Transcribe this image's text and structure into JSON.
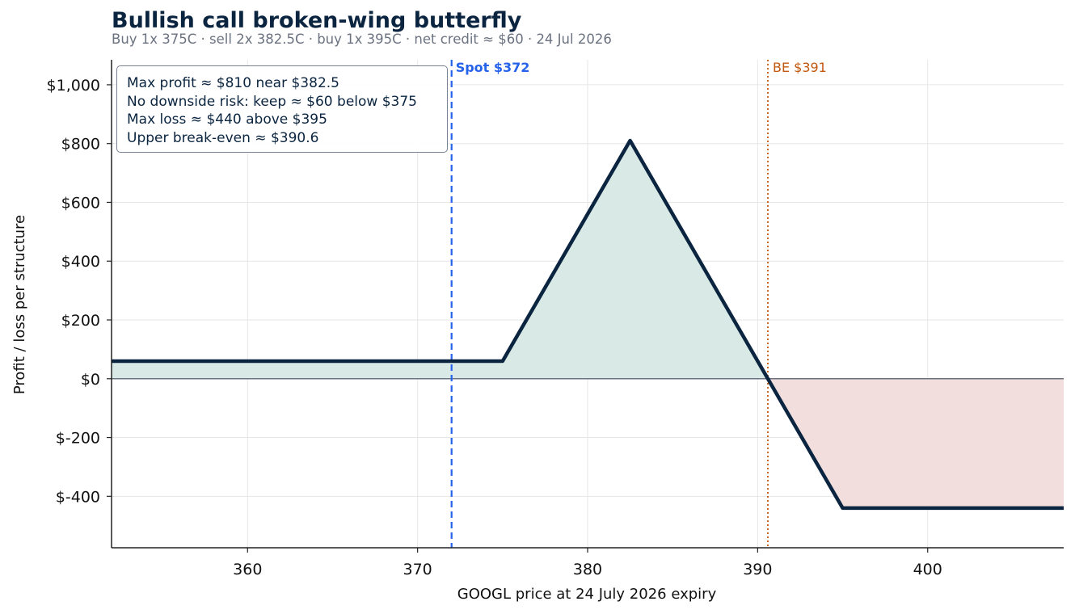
{
  "title": "Bullish call broken-wing butterfly",
  "subtitle": "Buy 1x 375C · sell 2x 382.5C · buy 1x 395C · net credit ≈ $60 · 24 Jul 2026",
  "colors": {
    "line": "#0b2540",
    "profit_fill": "#d9e9e5",
    "loss_fill": "#f3dede",
    "spot": "#2563eb",
    "breakeven": "#c2590f",
    "zero_line": "#6b7280"
  },
  "info_box": [
    "Max profit ≈ $810 near $382.5",
    "No downside risk: keep ≈ $60 below $375",
    "Max loss ≈ $440 above $395",
    "Upper break-even ≈ $390.6"
  ],
  "chart_data": {
    "type": "line",
    "title": "Bullish call broken-wing butterfly",
    "xlabel": "GOOGL price at 24 July 2026 expiry",
    "ylabel": "Profit / loss per structure",
    "xlim": [
      352,
      408
    ],
    "ylim": [
      -575,
      1085
    ],
    "x_ticks": [
      360,
      370,
      380,
      390,
      400
    ],
    "x_tick_labels": [
      "360",
      "370",
      "380",
      "390",
      "400"
    ],
    "y_ticks": [
      -400,
      -200,
      0,
      200,
      400,
      600,
      800,
      1000
    ],
    "y_tick_labels": [
      "$-400",
      "$-200",
      "$0",
      "$200",
      "$400",
      "$600",
      "$800",
      "$1,000"
    ],
    "grid": true,
    "series": [
      {
        "x": [
          352,
          375,
          382.5,
          390.6,
          395,
          408
        ],
        "y": [
          60,
          60,
          810,
          0,
          -440,
          -440
        ]
      }
    ],
    "markers": [
      {
        "label": "Spot $372",
        "x": 372,
        "style": "dashed"
      },
      {
        "label": "BE $391",
        "x": 390.6,
        "style": "dotted"
      }
    ]
  }
}
